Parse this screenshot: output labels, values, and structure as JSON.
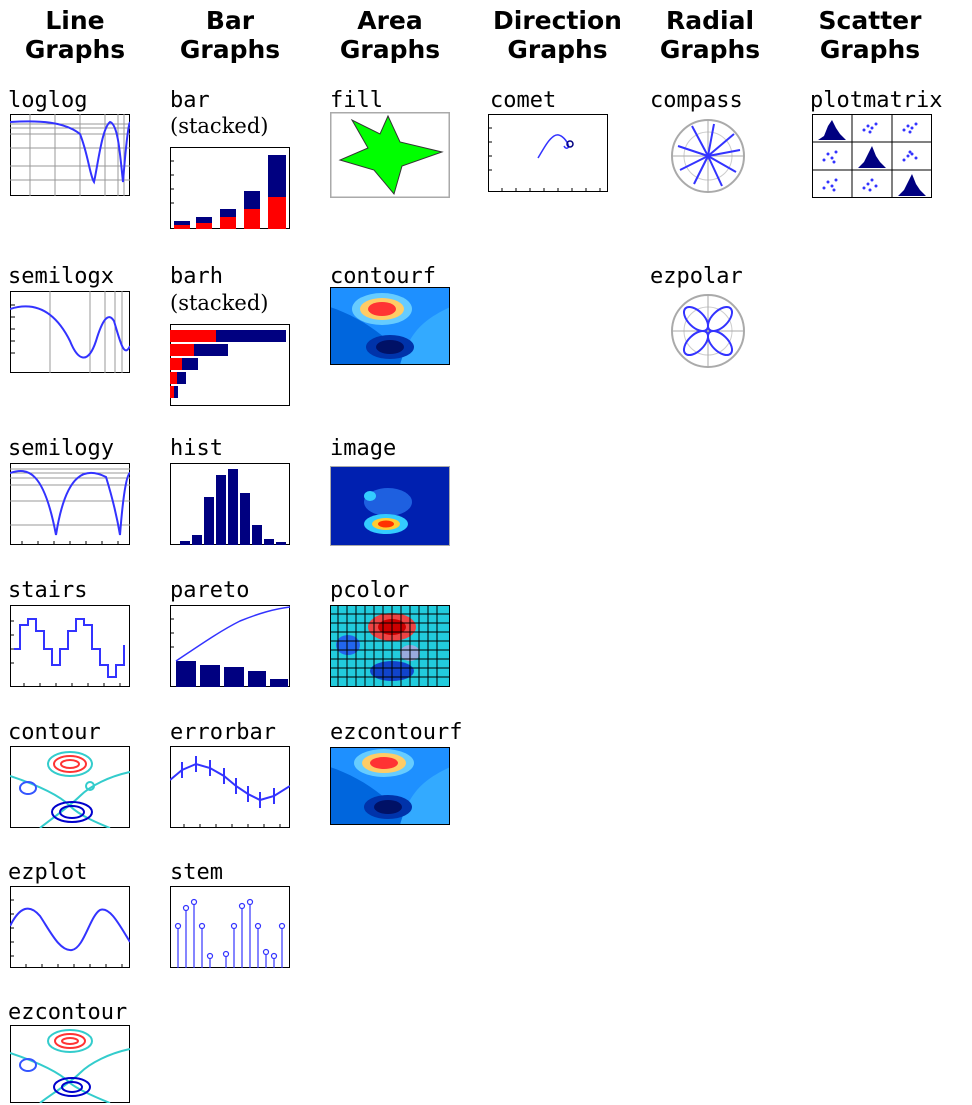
{
  "headers": {
    "line": "Line Graphs",
    "bar": "Bar Graphs",
    "area": "Area Graphs",
    "direction": "Direction Graphs",
    "radial": "Radial Graphs",
    "scatter": "Scatter Graphs"
  },
  "labels": {
    "loglog": "loglog",
    "semilogx": "semilogx",
    "semilogy": "semilogy",
    "stairs": "stairs",
    "contour": "contour",
    "ezplot": "ezplot",
    "ezcontour": "ezcontour",
    "bar": "bar",
    "bar_sub": "(stacked)",
    "barh": "barh",
    "barh_sub": "(stacked)",
    "hist": "hist",
    "pareto": "pareto",
    "errorbar": "errorbar",
    "stem": "stem",
    "fill": "fill",
    "contourf": "contourf",
    "image": "image",
    "pcolor": "pcolor",
    "ezcontourf": "ezcontourf",
    "comet": "comet",
    "compass": "compass",
    "ezpolar": "ezpolar",
    "plotmatrix": "plotmatrix"
  },
  "colors": {
    "navy": "#000080",
    "red": "#ff0000",
    "blue": "#3333ff",
    "green": "#00ff00",
    "contour_bg": "#1e90ff",
    "axis_gray": "#999999"
  }
}
